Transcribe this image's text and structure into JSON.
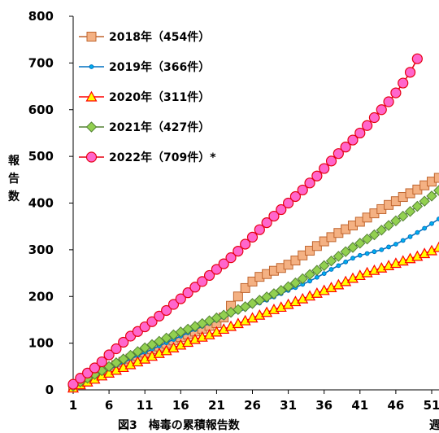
{
  "chart_data": {
    "type": "line",
    "caption": "図3　梅毒の累積報告数",
    "xlabel": "週",
    "ylabel": "報告数",
    "ylim": [
      0,
      800
    ],
    "xlim": [
      1,
      53
    ],
    "grid": false,
    "legend_position": "top-left",
    "x_ticks": [
      "1",
      "6",
      "11",
      "16",
      "21",
      "26",
      "31",
      "36",
      "41",
      "46",
      "51"
    ],
    "y_ticks": [
      "0",
      "100",
      "200",
      "300",
      "400",
      "500",
      "600",
      "700",
      "800"
    ],
    "series": [
      {
        "name": "2018年（454件）",
        "marker": "square",
        "color": "#C0652E",
        "fill": "#F4B183",
        "x": [
          1,
          2,
          3,
          4,
          5,
          6,
          7,
          8,
          9,
          10,
          11,
          12,
          13,
          14,
          15,
          16,
          17,
          18,
          19,
          20,
          21,
          22,
          23,
          24,
          25,
          26,
          27,
          28,
          29,
          30,
          31,
          32,
          33,
          34,
          35,
          36,
          37,
          38,
          39,
          40,
          41,
          42,
          43,
          44,
          45,
          46,
          47,
          48,
          49,
          50,
          51,
          52
        ],
        "values": [
          7,
          15,
          23,
          30,
          38,
          45,
          53,
          60,
          67,
          73,
          80,
          87,
          93,
          99,
          106,
          113,
          119,
          125,
          131,
          137,
          143,
          155,
          180,
          200,
          218,
          232,
          242,
          248,
          255,
          261,
          268,
          277,
          288,
          298,
          308,
          318,
          327,
          336,
          344,
          352,
          360,
          369,
          378,
          387,
          396,
          404,
          413,
          421,
          429,
          438,
          446,
          454
        ]
      },
      {
        "name": "2019年（366件）",
        "marker": "circle-small",
        "color": "#0070C0",
        "fill": "#00B0F0",
        "x": [
          1,
          2,
          3,
          4,
          5,
          6,
          7,
          8,
          9,
          10,
          11,
          12,
          13,
          14,
          15,
          16,
          17,
          18,
          19,
          20,
          21,
          22,
          23,
          24,
          25,
          26,
          27,
          28,
          29,
          30,
          31,
          32,
          33,
          34,
          35,
          36,
          37,
          38,
          39,
          40,
          41,
          42,
          43,
          44,
          45,
          46,
          47,
          48,
          49,
          50,
          51,
          52
        ],
        "values": [
          6,
          13,
          21,
          28,
          36,
          43,
          51,
          58,
          66,
          73,
          80,
          87,
          94,
          101,
          108,
          115,
          122,
          129,
          136,
          142,
          149,
          155,
          161,
          167,
          173,
          180,
          186,
          192,
          199,
          206,
          213,
          219,
          226,
          233,
          241,
          249,
          258,
          266,
          274,
          282,
          288,
          292,
          296,
          300,
          306,
          312,
          320,
          328,
          337,
          346,
          356,
          366
        ]
      },
      {
        "name": "2020年（311件）",
        "marker": "triangle",
        "color": "#FF0000",
        "fill": "#FFFF00",
        "x": [
          1,
          2,
          3,
          4,
          5,
          6,
          7,
          8,
          9,
          10,
          11,
          12,
          13,
          14,
          15,
          16,
          17,
          18,
          19,
          20,
          21,
          22,
          23,
          24,
          25,
          26,
          27,
          28,
          29,
          30,
          31,
          32,
          33,
          34,
          35,
          36,
          37,
          38,
          39,
          40,
          41,
          42,
          43,
          44,
          45,
          46,
          47,
          48,
          49,
          50,
          51,
          52,
          53
        ],
        "values": [
          4,
          11,
          17,
          23,
          30,
          36,
          42,
          48,
          54,
          60,
          66,
          72,
          78,
          84,
          90,
          96,
          102,
          108,
          113,
          118,
          124,
          130,
          136,
          142,
          148,
          154,
          160,
          166,
          172,
          177,
          183,
          189,
          195,
          201,
          207,
          213,
          219,
          225,
          232,
          239,
          245,
          251,
          256,
          261,
          266,
          271,
          276,
          281,
          286,
          292,
          298,
          305,
          311
        ]
      },
      {
        "name": "2021年（427件）",
        "marker": "diamond",
        "color": "#548235",
        "fill": "#92D050",
        "x": [
          1,
          2,
          3,
          4,
          5,
          6,
          7,
          8,
          9,
          10,
          11,
          12,
          13,
          14,
          15,
          16,
          17,
          18,
          19,
          20,
          21,
          22,
          23,
          24,
          25,
          26,
          27,
          28,
          29,
          30,
          31,
          32,
          33,
          34,
          35,
          36,
          37,
          38,
          39,
          40,
          41,
          42,
          43,
          44,
          45,
          46,
          47,
          48,
          49,
          50,
          51,
          52
        ],
        "values": [
          8,
          17,
          25,
          33,
          41,
          50,
          58,
          66,
          74,
          82,
          90,
          97,
          104,
          111,
          118,
          124,
          130,
          136,
          142,
          148,
          154,
          160,
          166,
          172,
          178,
          185,
          192,
          199,
          206,
          213,
          221,
          229,
          238,
          247,
          256,
          266,
          276,
          286,
          296,
          305,
          314,
          323,
          332,
          342,
          352,
          362,
          372,
          382,
          393,
          404,
          415,
          427
        ]
      },
      {
        "name": "2022年（709件）*",
        "marker": "circle",
        "color": "#E60012",
        "fill": "#FF66CC",
        "x": [
          1,
          2,
          3,
          4,
          5,
          6,
          7,
          8,
          9,
          10,
          11,
          12,
          13,
          14,
          15,
          16,
          17,
          18,
          19,
          20,
          21,
          22,
          23,
          24,
          25,
          26,
          27,
          28,
          29,
          30,
          31,
          32,
          33,
          34,
          35,
          36,
          37,
          38,
          39,
          40,
          41,
          42,
          43,
          44,
          45,
          46,
          47,
          48,
          49
        ],
        "values": [
          12,
          25,
          36,
          47,
          60,
          75,
          88,
          102,
          115,
          125,
          135,
          146,
          158,
          170,
          183,
          195,
          208,
          220,
          232,
          245,
          258,
          270,
          283,
          297,
          312,
          327,
          343,
          358,
          372,
          386,
          400,
          414,
          428,
          443,
          458,
          474,
          490,
          506,
          520,
          535,
          550,
          566,
          583,
          600,
          617,
          636,
          657,
          680,
          709
        ]
      }
    ]
  }
}
